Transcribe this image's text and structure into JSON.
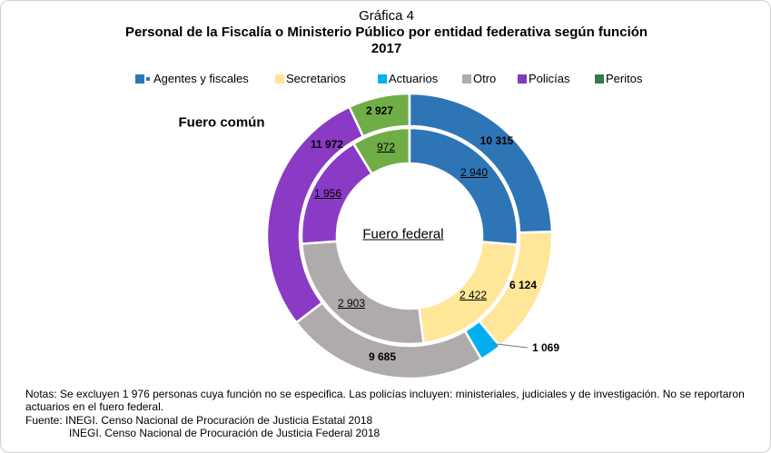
{
  "header": {
    "label": "Gráfica 4",
    "title": "Personal de la Fiscalía o Ministerio Público por entidad federativa según función",
    "year": "2017"
  },
  "chart_data": {
    "type": "pie",
    "subtype": "double-donut",
    "categories": [
      "Agentes y fiscales",
      "Secretarios",
      "Actuarios",
      "Otro",
      "Policías",
      "Peritos"
    ],
    "colors": [
      "#2e75b6",
      "#ffe699",
      "#00b0f0",
      "#afabab",
      "#8a3ac4",
      "#70ad47"
    ],
    "legend_colors": [
      "#2e75b6",
      "#ffe699",
      "#00b0f0",
      "#afabab",
      "#7e3ac0",
      "#2e7d4a"
    ],
    "series": [
      {
        "name": "Fuero común",
        "ring": "outer",
        "values": [
          10315,
          6124,
          1069,
          9685,
          11972,
          2927
        ],
        "labels": [
          "10 315",
          "6 124",
          "1 069",
          "9 685",
          "11 972",
          "2 927"
        ]
      },
      {
        "name": "Fuero federal",
        "ring": "inner",
        "values": [
          2940,
          2422,
          0,
          2903,
          1956,
          972
        ],
        "labels": [
          "2 940",
          "2 422",
          "",
          "2 903",
          "1 956",
          "972"
        ]
      }
    ],
    "legend_position": "top"
  },
  "notes": [
    "Notas: Se excluyen 1 976 personas cuya función no se especifica. Las policías incluyen: ministeriales, judiciales y de investigación. No se reportaron actuarios en el fuero federal.",
    "Fuente: INEGI. Censo Nacional de Procuración de Justicia Estatal 2018",
    "INEGI. Censo Nacional de Procuración de Justicia Federal 2018"
  ]
}
